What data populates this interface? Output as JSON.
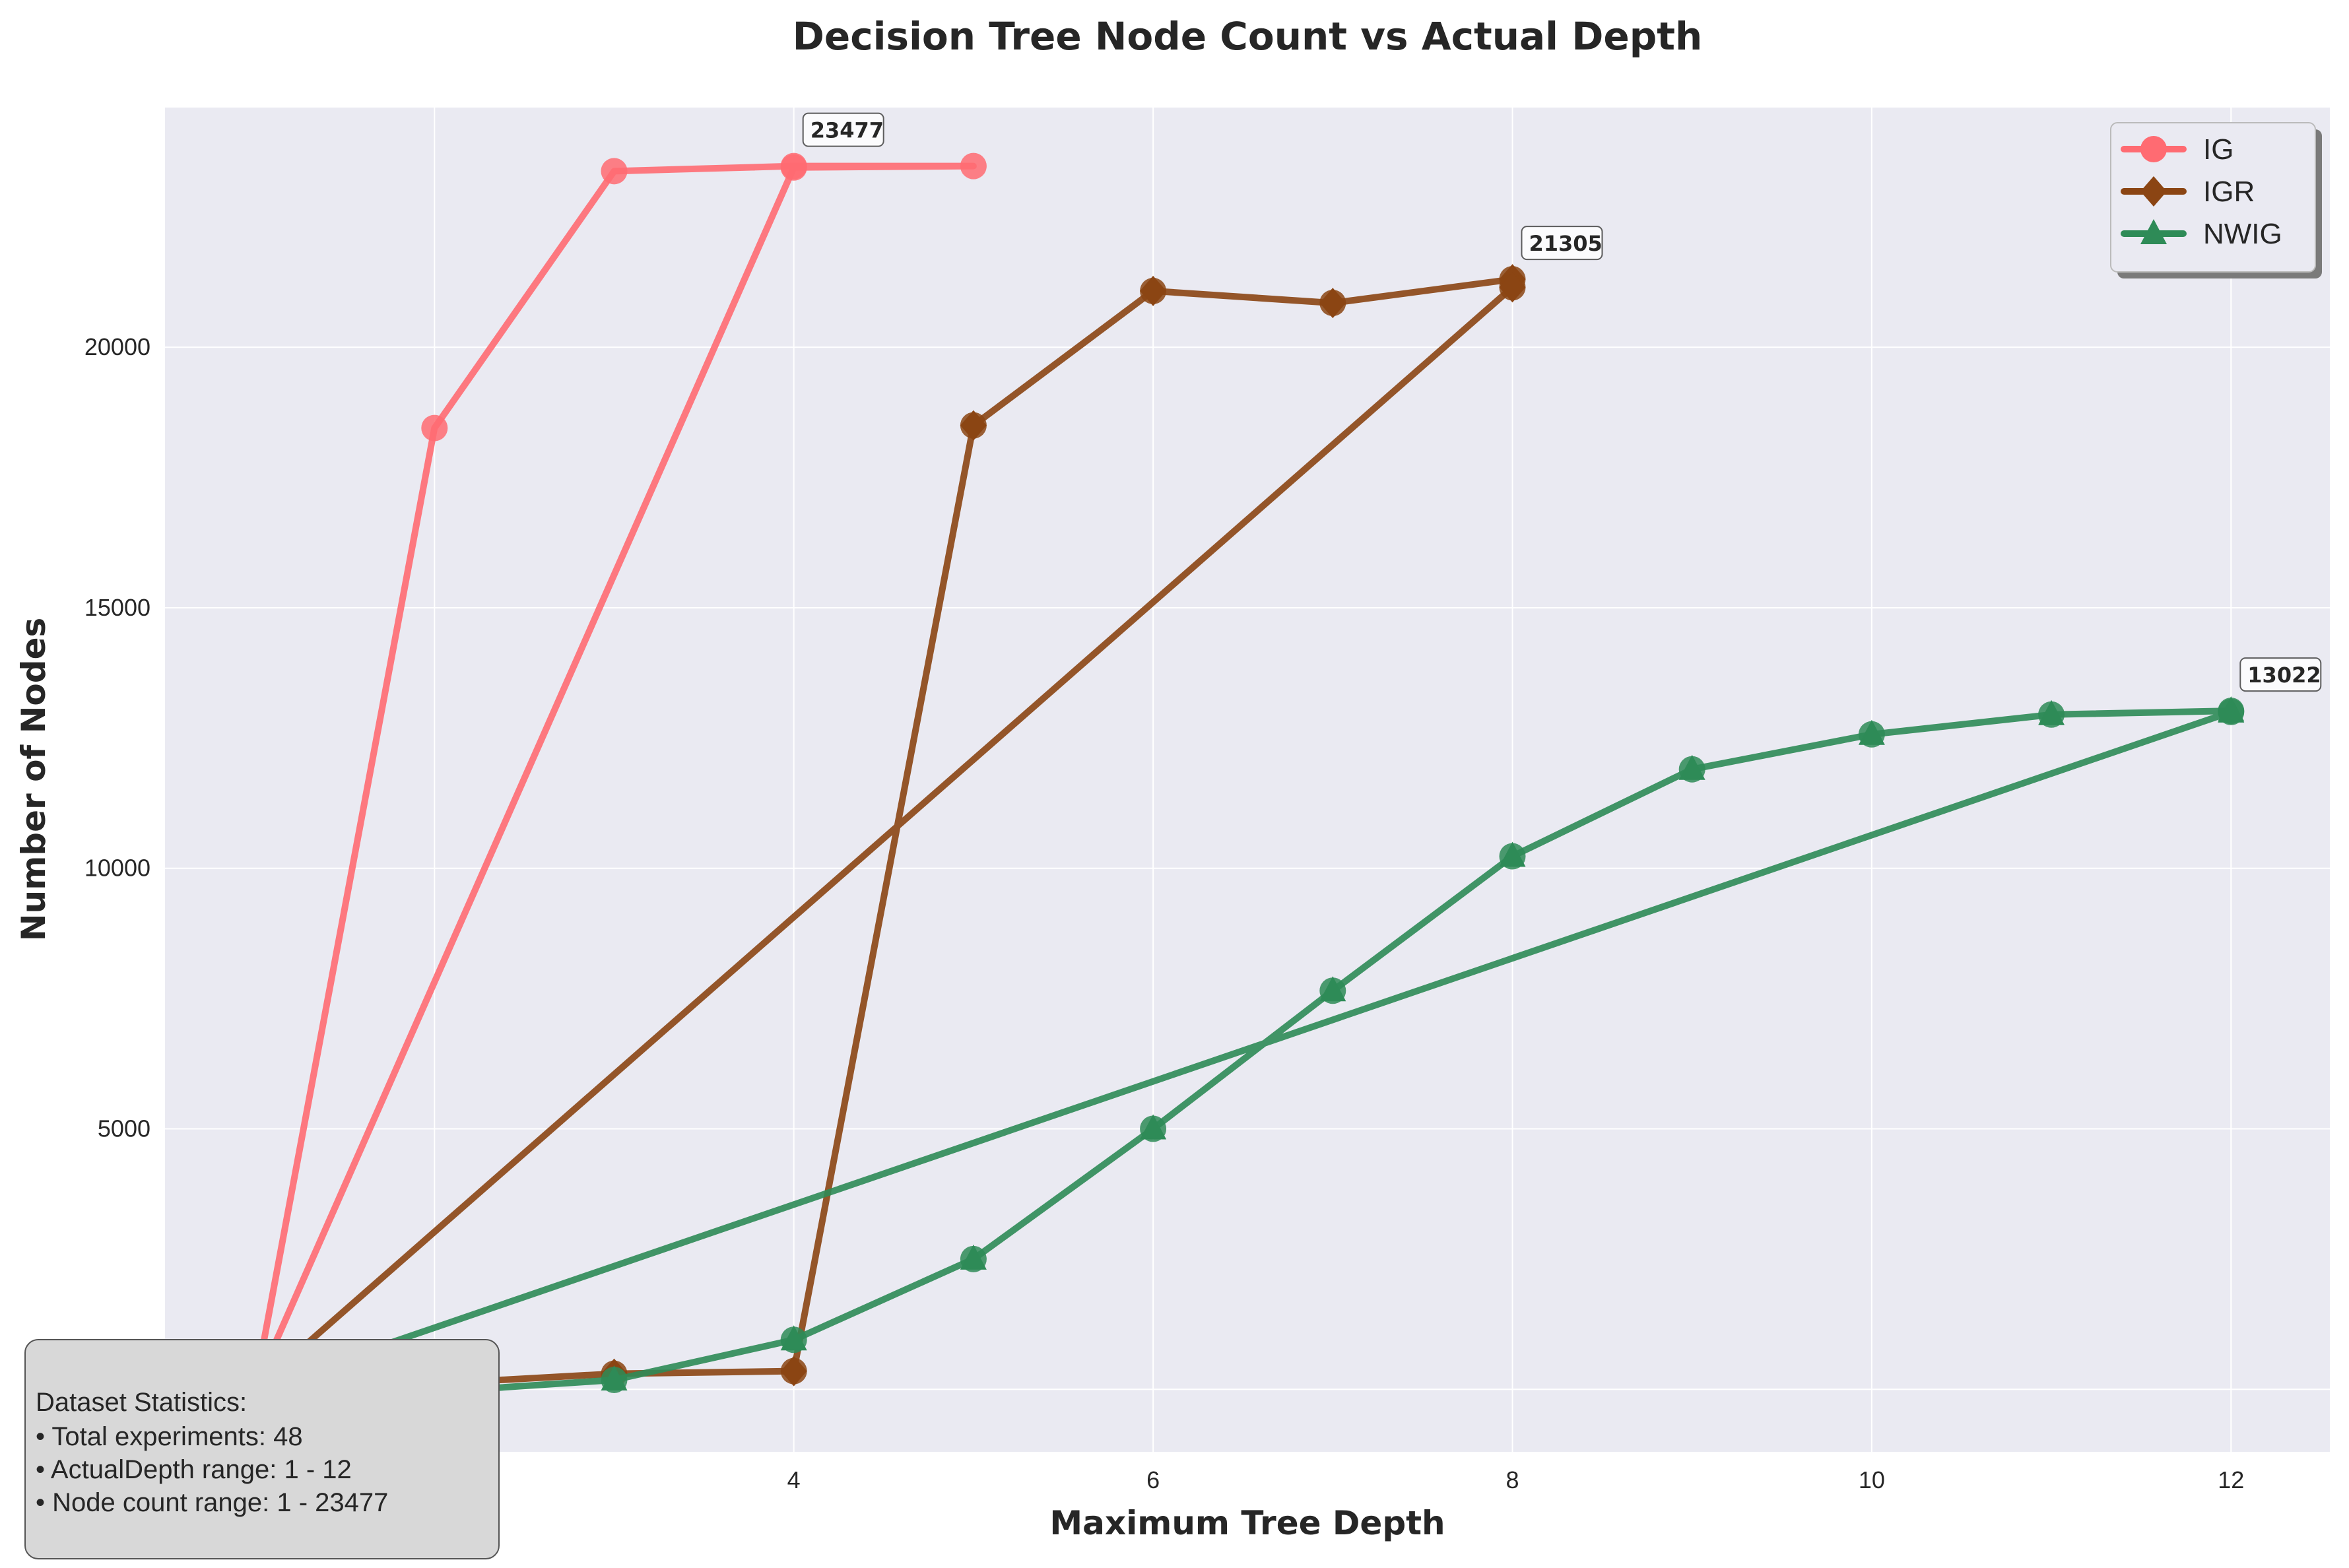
{
  "chart_data": {
    "type": "line",
    "title": "Decision Tree Node Count vs Actual Depth",
    "xlabel": "Maximum Tree Depth",
    "ylabel": "Number of Nodes",
    "xlim": [
      0.5,
      12.55
    ],
    "ylim": [
      -1200,
      24600
    ],
    "x_ticks": [
      2,
      4,
      6,
      8,
      10,
      12
    ],
    "y_ticks": [
      0,
      5000,
      10000,
      15000,
      20000
    ],
    "grid": true,
    "legend_position": "top-right",
    "series": [
      {
        "name": "IG",
        "color": "#ff6b72",
        "marker": "circle",
        "x": [
          1,
          2,
          3,
          4,
          5,
          4,
          1
        ],
        "y": [
          1,
          18450,
          23380,
          23477,
          23477,
          23450,
          1
        ],
        "peak": {
          "x": 4,
          "y": 23477,
          "label": "23477"
        }
      },
      {
        "name": "IGR",
        "color": "#8b4513",
        "marker": "diamond",
        "x": [
          1,
          2,
          3,
          4,
          5,
          6,
          7,
          8,
          8,
          1
        ],
        "y": [
          1,
          110,
          300,
          350,
          18500,
          21080,
          20850,
          21305,
          21150,
          1
        ],
        "peak": {
          "x": 8,
          "y": 21305,
          "label": "21305"
        }
      },
      {
        "name": "NWIG",
        "color": "#2e8b57",
        "marker": "triangle",
        "x": [
          1,
          2,
          3,
          4,
          5,
          6,
          7,
          8,
          9,
          10,
          11,
          12,
          12,
          1
        ],
        "y": [
          1,
          -50,
          180,
          950,
          2500,
          5000,
          7650,
          10230,
          11900,
          12570,
          12950,
          13022,
          13000,
          1
        ],
        "peak": {
          "x": 12,
          "y": 13022,
          "label": "13022"
        }
      }
    ]
  },
  "stats": {
    "title": "Dataset Statistics:",
    "lines": [
      "• Total experiments: 48",
      "• ActualDepth range: 1 - 12",
      "• Node count range: 1 - 23477"
    ]
  }
}
